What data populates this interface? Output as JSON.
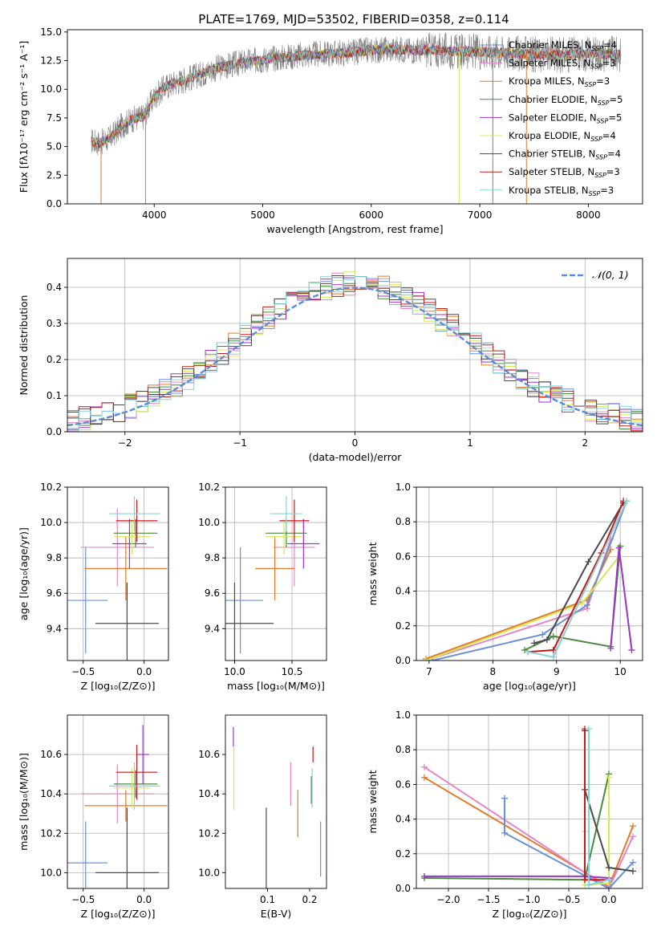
{
  "figure_title": "PLATE=1769, MJD=53502, FIBERID=0358, z=0.114",
  "colors": {
    "chabrier_miles": "#6b8fd6",
    "salpeter_miles": "#e486c6",
    "kroupa_miles": "#e07b2c",
    "chabrier_elodie": "#4a8a3e",
    "salpeter_elodie": "#9b35c6",
    "kroupa_elodie": "#d4e85b",
    "chabrier_stelib": "#4a4a4a",
    "salpeter_stelib": "#c21a1a",
    "kroupa_stelib": "#86d2d8",
    "data": "#7f7f7f",
    "normal_curve": "#5b8bd8"
  },
  "chart_data": [
    {
      "id": "spectrum",
      "type": "line",
      "xlabel": "wavelength [Angstrom, rest frame]",
      "ylabel": "Flux [fλ10⁻¹⁷ erg cm⁻² s⁻¹ A⁻¹]",
      "xlim": [
        3200,
        8500
      ],
      "ylim": [
        0,
        15.2
      ],
      "xticks": [
        4000,
        5000,
        6000,
        7000,
        8000
      ],
      "yticks": [
        "0.0",
        "2.5",
        "5.0",
        "7.5",
        "10.0",
        "12.5",
        "15.0"
      ],
      "grid": false,
      "legend_position": "top-right",
      "legend": [
        "Chabrier MILES, N_SSP=4",
        "Salpeter MILES, N_SSP=3",
        "Kroupa MILES, N_SSP=3",
        "Chabrier ELODIE, N_SSP=5",
        "Salpeter ELODIE, N_SSP=5",
        "Kroupa ELODIE, N_SSP=4",
        "Chabrier STELIB, N_SSP=4",
        "Salpeter STELIB, N_SSP=3",
        "Kroupa STELIB, N_SSP=3"
      ],
      "continuum": {
        "x": [
          3420,
          3500,
          3600,
          3700,
          3800,
          3900,
          4000,
          4100,
          4200,
          4300,
          4400,
          4500,
          4600,
          4800,
          5000,
          5200,
          5400,
          5600,
          5800,
          6000,
          6200,
          6400,
          6600,
          6800,
          7000,
          7200,
          7400,
          7600,
          7800,
          8000,
          8200,
          8300
        ],
        "y": [
          5.5,
          5.3,
          5.8,
          6.8,
          7.4,
          7.6,
          9.3,
          10.2,
          10.6,
          10.9,
          11.2,
          11.6,
          11.9,
          12.3,
          12.6,
          12.8,
          13.0,
          13.1,
          13.2,
          13.4,
          13.5,
          13.4,
          13.4,
          13.3,
          13.3,
          13.2,
          13.1,
          13.0,
          13.0,
          13.1,
          13.1,
          13.0
        ]
      },
      "gaps": [
        3510,
        3920,
        6810,
        7120,
        7430
      ]
    },
    {
      "id": "residuals",
      "type": "histogram",
      "xlabel": "(data-model)/error",
      "ylabel": "Normed distribution",
      "xlim": [
        -2.5,
        2.5
      ],
      "ylim": [
        0,
        0.48
      ],
      "xticks": [
        -2,
        -1,
        0,
        1,
        2
      ],
      "yticks": [
        "0.0",
        "0.1",
        "0.2",
        "0.3",
        "0.4"
      ],
      "grid": true,
      "legend_position": "top-right",
      "legend": [
        "𝒩(0, 1)"
      ],
      "curve": "normal(0,1)",
      "bin_width": 0.1
    },
    {
      "id": "age_vs_Z",
      "type": "errorbar",
      "xlabel": "Z [log₁₀(Z/Z⊙)]",
      "ylabel": "age  [log₁₀(age/yr)]",
      "xlim": [
        -0.63,
        0.2
      ],
      "ylim": [
        9.22,
        10.2
      ],
      "xticks": [
        "-0.5",
        "0.0"
      ],
      "yticks": [
        "9.4",
        "9.6",
        "9.8",
        "10.0",
        "10.2"
      ],
      "grid": true,
      "points": [
        {
          "c": "chabrier_miles",
          "x": -0.48,
          "xe": 0.18,
          "y": 9.56,
          "ye": 0.3
        },
        {
          "c": "salpeter_miles",
          "x": -0.22,
          "xe": 0.3,
          "y": 9.86,
          "ye": 0.22
        },
        {
          "c": "kroupa_miles",
          "x": -0.15,
          "xe": 0.34,
          "y": 9.74,
          "ye": 0.18
        },
        {
          "c": "chabrier_elodie",
          "x": -0.07,
          "xe": 0.18,
          "y": 9.94,
          "ye": 0.08
        },
        {
          "c": "salpeter_elodie",
          "x": -0.12,
          "xe": 0.14,
          "y": 9.88,
          "ye": 0.14
        },
        {
          "c": "kroupa_elodie",
          "x": -0.1,
          "xe": 0.15,
          "y": 9.92,
          "ye": 0.1
        },
        {
          "c": "chabrier_stelib",
          "x": -0.14,
          "xe": 0.26,
          "y": 9.43,
          "ye": 0.23
        },
        {
          "c": "salpeter_stelib",
          "x": -0.06,
          "xe": 0.17,
          "y": 10.01,
          "ye": 0.12
        },
        {
          "c": "kroupa_stelib",
          "x": -0.08,
          "xe": 0.21,
          "y": 10.05,
          "ye": 0.1
        }
      ]
    },
    {
      "id": "age_vs_mass",
      "type": "errorbar",
      "xlabel": "mass [log₁₀(M/M⊙)]",
      "ylabel": "",
      "xlim": [
        9.92,
        10.8
      ],
      "ylim": [
        9.22,
        10.2
      ],
      "xticks": [
        "10.0",
        "10.5"
      ],
      "yticks": [
        "9.4",
        "9.6",
        "9.8",
        "10.0",
        "10.2"
      ],
      "grid": true,
      "points": [
        {
          "c": "chabrier_miles",
          "x": 10.05,
          "xe": 0.2,
          "y": 9.56,
          "ye": 0.3
        },
        {
          "c": "salpeter_miles",
          "x": 10.52,
          "xe": 0.18,
          "y": 9.86,
          "ye": 0.22
        },
        {
          "c": "kroupa_miles",
          "x": 10.35,
          "xe": 0.17,
          "y": 9.74,
          "ye": 0.18
        },
        {
          "c": "chabrier_elodie",
          "x": 10.45,
          "xe": 0.18,
          "y": 9.94,
          "ye": 0.08
        },
        {
          "c": "salpeter_elodie",
          "x": 10.6,
          "xe": 0.14,
          "y": 9.88,
          "ye": 0.14
        },
        {
          "c": "kroupa_elodie",
          "x": 10.43,
          "xe": 0.16,
          "y": 9.92,
          "ye": 0.1
        },
        {
          "c": "chabrier_stelib",
          "x": 10.0,
          "xe": 0.34,
          "y": 9.43,
          "ye": 0.23
        },
        {
          "c": "salpeter_stelib",
          "x": 10.52,
          "xe": 0.13,
          "y": 10.01,
          "ye": 0.12
        },
        {
          "c": "kroupa_stelib",
          "x": 10.45,
          "xe": 0.14,
          "y": 10.05,
          "ye": 0.1
        }
      ]
    },
    {
      "id": "weight_vs_age",
      "type": "line",
      "xlabel": "age  [log₁₀(age/yr)]",
      "ylabel": "mass weight",
      "xlim": [
        6.8,
        10.35
      ],
      "ylim": [
        0,
        1.0
      ],
      "xticks": [
        "7",
        "8",
        "9",
        "10"
      ],
      "yticks": [
        "0.0",
        "0.2",
        "0.4",
        "0.6",
        "0.8",
        "1.0"
      ],
      "grid": true,
      "series": [
        {
          "c": "kroupa_miles",
          "x": [
            6.95,
            9.48,
            9.85
          ],
          "y": [
            0.01,
            0.35,
            0.64
          ]
        },
        {
          "c": "salpeter_miles",
          "x": [
            6.95,
            9.48,
            9.85
          ],
          "y": [
            0.0,
            0.3,
            0.7
          ]
        },
        {
          "c": "chabrier_miles",
          "x": [
            7.05,
            8.78,
            9.48,
            10.1
          ],
          "y": [
            0.0,
            0.15,
            0.32,
            0.92
          ]
        },
        {
          "c": "kroupa_elodie",
          "x": [
            6.95,
            9.4,
            9.98
          ],
          "y": [
            0.0,
            0.33,
            0.6
          ]
        },
        {
          "c": "chabrier_elodie",
          "x": [
            8.5,
            8.95,
            9.85,
            10.0
          ],
          "y": [
            0.06,
            0.14,
            0.08,
            0.66
          ]
        },
        {
          "c": "salpeter_elodie",
          "x": [
            9.85,
            9.98,
            10.18
          ],
          "y": [
            0.07,
            0.65,
            0.06
          ]
        },
        {
          "c": "chabrier_stelib",
          "x": [
            8.65,
            8.85,
            9.5,
            10.05
          ],
          "y": [
            0.1,
            0.12,
            0.57,
            0.91
          ]
        },
        {
          "c": "salpeter_stelib",
          "x": [
            8.55,
            8.95,
            9.7,
            10.05
          ],
          "y": [
            0.05,
            0.06,
            0.62,
            0.92
          ]
        },
        {
          "c": "kroupa_stelib",
          "x": [
            8.55,
            8.95,
            10.1
          ],
          "y": [
            0.05,
            0.02,
            0.92
          ]
        }
      ]
    },
    {
      "id": "mass_vs_Z",
      "type": "errorbar",
      "xlabel": "Z [log₁₀(Z/Z⊙)]",
      "ylabel": "mass [log₁₀(M/M⊙)]",
      "xlim": [
        -0.63,
        0.2
      ],
      "ylim": [
        9.92,
        10.8
      ],
      "xticks": [
        "-0.5",
        "0.0"
      ],
      "yticks": [
        "10.0",
        "10.2",
        "10.4",
        "10.6"
      ],
      "grid": true,
      "points": [
        {
          "c": "chabrier_miles",
          "x": -0.48,
          "xe": 0.18,
          "y": 10.05,
          "ye": 0.21
        },
        {
          "c": "salpeter_miles",
          "x": -0.22,
          "xe": 0.3,
          "y": 10.4,
          "ye": 0.15
        },
        {
          "c": "kroupa_miles",
          "x": -0.15,
          "xe": 0.34,
          "y": 10.34,
          "ye": 0.08
        },
        {
          "c": "chabrier_elodie",
          "x": -0.07,
          "xe": 0.18,
          "y": 10.45,
          "ye": 0.07
        },
        {
          "c": "salpeter_elodie",
          "x": -0.01,
          "xe": 0.05,
          "y": 10.6,
          "ye": 0.15
        },
        {
          "c": "kroupa_elodie",
          "x": -0.1,
          "xe": 0.15,
          "y": 10.43,
          "ye": 0.1
        },
        {
          "c": "chabrier_stelib",
          "x": -0.14,
          "xe": 0.26,
          "y": 10.0,
          "ye": 0.33
        },
        {
          "c": "salpeter_stelib",
          "x": -0.06,
          "xe": 0.17,
          "y": 10.51,
          "ye": 0.14
        },
        {
          "c": "kroupa_stelib",
          "x": -0.08,
          "xe": 0.21,
          "y": 10.44,
          "ye": 0.12
        }
      ]
    },
    {
      "id": "mass_vs_ebv",
      "type": "errorbar",
      "xlabel": "E(B-V)",
      "ylabel": "",
      "xlim": [
        0.0,
        0.24
      ],
      "ylim": [
        9.92,
        10.8
      ],
      "xticks": [
        "0.1",
        "0.2"
      ],
      "yticks": [
        "10.0",
        "10.2",
        "10.4",
        "10.6"
      ],
      "grid": false,
      "points": [
        {
          "c": "chabrier_miles",
          "x": 0.226,
          "xe": 0.0,
          "y": 10.12,
          "ye": 0.14
        },
        {
          "c": "salpeter_miles",
          "x": 0.155,
          "xe": 0.0,
          "y": 10.45,
          "ye": 0.11
        },
        {
          "c": "kroupa_miles",
          "x": 0.172,
          "xe": 0.0,
          "y": 10.3,
          "ye": 0.12
        },
        {
          "c": "chabrier_elodie",
          "x": 0.204,
          "xe": 0.0,
          "y": 10.42,
          "ye": 0.07
        },
        {
          "c": "salpeter_elodie",
          "x": 0.019,
          "xe": 0.0,
          "y": 10.69,
          "ye": 0.05
        },
        {
          "c": "kroupa_elodie",
          "x": 0.02,
          "xe": 0.0,
          "y": 10.48,
          "ye": 0.16
        },
        {
          "c": "chabrier_stelib",
          "x": 0.097,
          "xe": 0.0,
          "y": 10.0,
          "ye": 0.33
        },
        {
          "c": "salpeter_stelib",
          "x": 0.208,
          "xe": 0.0,
          "y": 10.6,
          "ye": 0.04
        },
        {
          "c": "kroupa_stelib",
          "x": 0.206,
          "xe": 0.0,
          "y": 10.43,
          "ye": 0.1
        }
      ]
    },
    {
      "id": "weight_vs_Z",
      "type": "line",
      "xlabel": "Z [log₁₀(Z/Z⊙)]",
      "ylabel": "mass weight",
      "xlim": [
        -2.4,
        0.42
      ],
      "ylim": [
        0,
        1.0
      ],
      "xticks": [
        "-2.0",
        "-1.5",
        "-1.0",
        "-0.5",
        "0.0"
      ],
      "yticks": [
        "0.0",
        "0.2",
        "0.4",
        "0.6",
        "0.8",
        "1.0"
      ],
      "grid": true,
      "series": [
        {
          "c": "kroupa_miles",
          "x": [
            -2.3,
            0.0,
            0.3
          ],
          "y": [
            0.64,
            0.01,
            0.36
          ]
        },
        {
          "c": "salpeter_miles",
          "x": [
            -2.3,
            0.0,
            0.3
          ],
          "y": [
            0.7,
            0.0,
            0.3
          ]
        },
        {
          "c": "chabrier_miles",
          "x": [
            -1.3,
            -1.3,
            0.0,
            0.3
          ],
          "y": [
            0.52,
            0.32,
            0.0,
            0.15
          ]
        },
        {
          "c": "chabrier_elodie",
          "x": [
            -2.3,
            -0.3,
            0.0
          ],
          "y": [
            0.06,
            0.05,
            0.66
          ]
        },
        {
          "c": "salpeter_elodie",
          "x": [
            -2.3,
            -0.3,
            0.0
          ],
          "y": [
            0.07,
            0.07,
            0.06
          ]
        },
        {
          "c": "kroupa_elodie",
          "x": [
            -0.3,
            -0.3,
            0.0,
            0.0
          ],
          "y": [
            0.33,
            0.02,
            0.03,
            0.64
          ]
        },
        {
          "c": "chabrier_stelib",
          "x": [
            -0.3,
            -0.3,
            0.0,
            0.3
          ],
          "y": [
            0.91,
            0.57,
            0.12,
            0.1
          ]
        },
        {
          "c": "salpeter_stelib",
          "x": [
            -0.3,
            -0.3,
            0.0
          ],
          "y": [
            0.92,
            0.05,
            0.05
          ]
        },
        {
          "c": "kroupa_stelib",
          "x": [
            -0.25,
            -0.25,
            0.0
          ],
          "y": [
            0.92,
            0.02,
            0.05
          ]
        }
      ]
    }
  ]
}
